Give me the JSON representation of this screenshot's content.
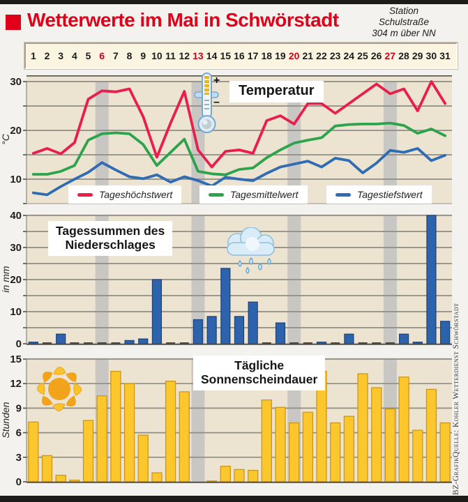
{
  "header": {
    "title": "Wetterwerte im Mai in Schwörstadt",
    "station_lines": [
      "Station",
      "Schulstraße",
      "304 m über NN"
    ]
  },
  "days": {
    "labels": [
      "1",
      "2",
      "3",
      "4",
      "5",
      "6",
      "7",
      "8",
      "9",
      "10",
      "11",
      "12",
      "13",
      "14",
      "15",
      "16",
      "17",
      "18",
      "19",
      "20",
      "21",
      "22",
      "23",
      "24",
      "25",
      "26",
      "27",
      "28",
      "29",
      "30",
      "31"
    ],
    "red_days": [
      6,
      13,
      20,
      27
    ]
  },
  "credit": {
    "grafik": "BZ-Grafik",
    "quelle": "Quelle: Kohler Wetterdienst Schwörstadt"
  },
  "colors": {
    "accent_red": "#e00019",
    "line_max": "#e91e4d",
    "line_mean": "#2da44c",
    "line_min": "#2f6cb3",
    "rain_bar": "#2d63ac",
    "rain_bar_edge": "#1c4276",
    "sun_bar": "#fbc72d",
    "sun_bar_edge": "#cc961c",
    "plot_bg": "#ece3d1",
    "sunday_band": "#c8c7c4",
    "gridline": "#8f8d85"
  },
  "chart_data": [
    {
      "id": "temperature",
      "type": "line",
      "title": "Temperatur",
      "ylabel": "°C",
      "yticks": [
        10,
        20,
        30
      ],
      "gridlines": [
        10,
        15,
        20,
        25,
        30
      ],
      "ylim": [
        5.5,
        31.3
      ],
      "categories": [
        "1",
        "2",
        "3",
        "4",
        "5",
        "6",
        "7",
        "8",
        "9",
        "10",
        "11",
        "12",
        "13",
        "14",
        "15",
        "16",
        "17",
        "18",
        "19",
        "20",
        "21",
        "22",
        "23",
        "24",
        "25",
        "26",
        "27",
        "28",
        "29",
        "30",
        "31"
      ],
      "series": [
        {
          "name": "Tageshöchstwert",
          "color": "#e91e4d",
          "values": [
            15.3,
            16.3,
            15.2,
            17.5,
            26.4,
            28.1,
            27.9,
            28.5,
            22.8,
            14.5,
            21.5,
            28.0,
            16.0,
            12.5,
            15.7,
            16.0,
            15.3,
            22.0,
            23.0,
            21.3,
            25.5,
            25.5,
            23.5,
            25.5,
            27.5,
            29.5,
            27.5,
            28.5,
            24.0,
            30.0,
            25.5
          ]
        },
        {
          "name": "Tagesmittelwert",
          "color": "#2da44c",
          "values": [
            11.0,
            11.0,
            11.6,
            12.8,
            18.0,
            19.3,
            19.5,
            19.3,
            17.1,
            12.8,
            15.5,
            18.2,
            11.6,
            11.1,
            10.9,
            12.0,
            12.3,
            14.4,
            16.0,
            17.4,
            18.0,
            18.5,
            20.9,
            21.2,
            21.3,
            21.3,
            21.5,
            21.0,
            19.4,
            20.3,
            18.9
          ]
        },
        {
          "name": "Tagestiefstwert",
          "color": "#2f6cb3",
          "values": [
            7.2,
            6.8,
            8.5,
            10.0,
            11.4,
            13.4,
            11.9,
            10.5,
            10.1,
            10.9,
            9.4,
            10.5,
            9.7,
            8.6,
            10.4,
            10.0,
            9.7,
            11.2,
            12.5,
            13.1,
            13.7,
            12.5,
            14.3,
            13.8,
            11.3,
            13.3,
            15.9,
            15.5,
            16.3,
            13.8,
            14.9
          ]
        }
      ]
    },
    {
      "id": "precipitation",
      "type": "bar",
      "title": "Tagessummen des Niederschlages",
      "title_lines": [
        "Tagessummen des",
        "Niederschlages"
      ],
      "ylabel": "in mm",
      "yticks": [
        0,
        10,
        20,
        30,
        40
      ],
      "gridlines": [
        5,
        10,
        15,
        20,
        25,
        30,
        35,
        40
      ],
      "ylim": [
        0,
        40
      ],
      "categories": [
        "1",
        "2",
        "3",
        "4",
        "5",
        "6",
        "7",
        "8",
        "9",
        "10",
        "11",
        "12",
        "13",
        "14",
        "15",
        "16",
        "17",
        "18",
        "19",
        "20",
        "21",
        "22",
        "23",
        "24",
        "25",
        "26",
        "27",
        "28",
        "29",
        "30",
        "31"
      ],
      "values": [
        0.5,
        0,
        3,
        0,
        0,
        0,
        0,
        1,
        1.5,
        20,
        0,
        0,
        7.5,
        8.5,
        23.5,
        8.5,
        13,
        0,
        6.5,
        0,
        0,
        0.5,
        0,
        3,
        0,
        0,
        0,
        3,
        0.5,
        40,
        7
      ]
    },
    {
      "id": "sunshine",
      "type": "bar",
      "title": "Tägliche Sonnenscheindauer",
      "title_lines": [
        "Tägliche",
        "Sonnenscheindauer"
      ],
      "ylabel": "Stunden",
      "yticks": [
        0,
        3,
        6,
        9,
        12,
        15
      ],
      "gridlines": [
        3,
        6,
        9,
        12,
        15
      ],
      "ylim": [
        0,
        15
      ],
      "categories": [
        "1",
        "2",
        "3",
        "4",
        "5",
        "6",
        "7",
        "8",
        "9",
        "10",
        "11",
        "12",
        "13",
        "14",
        "15",
        "16",
        "17",
        "18",
        "19",
        "20",
        "21",
        "22",
        "23",
        "24",
        "25",
        "26",
        "27",
        "28",
        "29",
        "30",
        "31"
      ],
      "values": [
        7.3,
        3.2,
        0.8,
        0.2,
        7.5,
        10.5,
        13.5,
        12,
        5.7,
        1.1,
        12.3,
        11,
        0,
        0.1,
        1.9,
        1.5,
        1.4,
        10,
        9.1,
        7.2,
        8.5,
        13.5,
        7.2,
        8,
        13.2,
        11.5,
        8.9,
        12.8,
        6.3,
        11.3,
        7.2
      ]
    }
  ]
}
